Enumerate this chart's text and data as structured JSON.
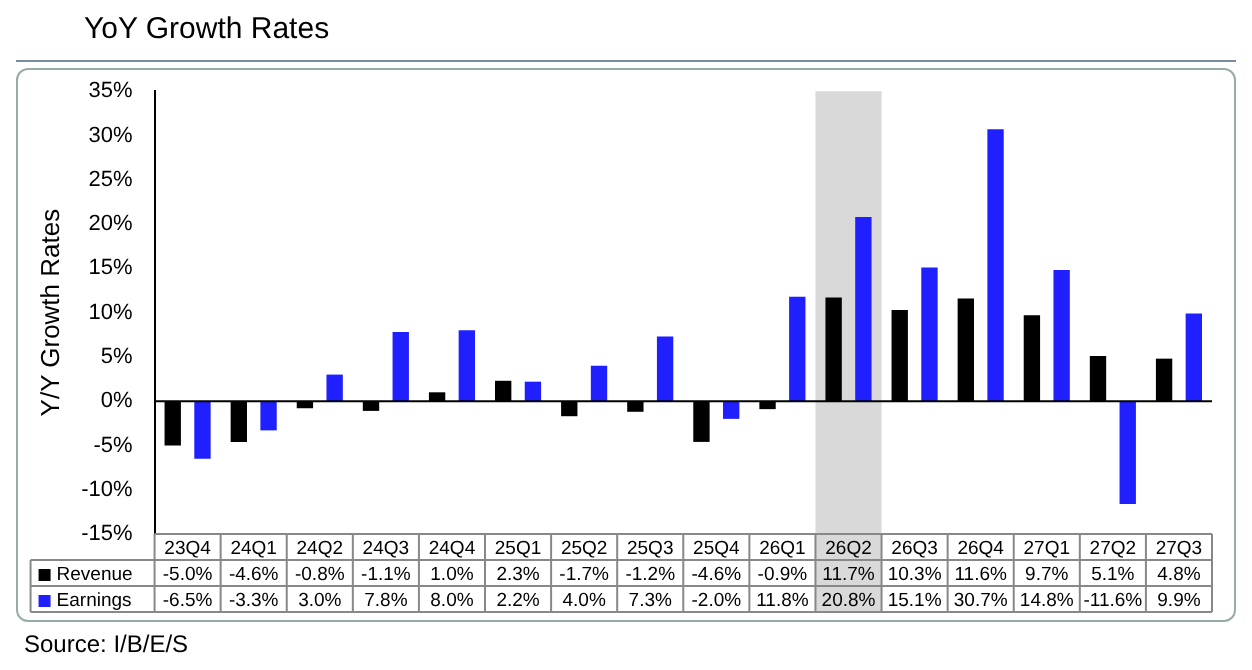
{
  "chart_data": {
    "type": "bar",
    "title": "YoY Growth Rates",
    "ylabel": "Y/Y Growth Rates",
    "categories": [
      "23Q4",
      "24Q1",
      "24Q2",
      "24Q3",
      "24Q4",
      "25Q1",
      "25Q2",
      "25Q3",
      "25Q4",
      "26Q1",
      "26Q2",
      "26Q3",
      "26Q4",
      "27Q1",
      "27Q2",
      "27Q3"
    ],
    "series": [
      {
        "name": "Revenue",
        "color": "#000000",
        "values": [
          -5.0,
          -4.6,
          -0.8,
          -1.1,
          1.0,
          2.3,
          -1.7,
          -1.2,
          -4.6,
          -0.9,
          11.7,
          10.3,
          11.6,
          9.7,
          5.1,
          4.8
        ],
        "value_labels": [
          "-5.0%",
          "-4.6%",
          "-0.8%",
          "-1.1%",
          "1.0%",
          "2.3%",
          "-1.7%",
          "-1.2%",
          "-4.6%",
          "-0.9%",
          "11.7%",
          "10.3%",
          "11.6%",
          "9.7%",
          "5.1%",
          "4.8%"
        ]
      },
      {
        "name": "Earnings",
        "color": "#1f1fff",
        "values": [
          -6.5,
          -3.3,
          3.0,
          7.8,
          8.0,
          2.2,
          4.0,
          7.3,
          -2.0,
          11.8,
          20.8,
          15.1,
          30.7,
          14.8,
          -11.6,
          9.9
        ],
        "value_labels": [
          "-6.5%",
          "-3.3%",
          "3.0%",
          "7.8%",
          "8.0%",
          "2.2%",
          "4.0%",
          "7.3%",
          "-2.0%",
          "11.8%",
          "20.8%",
          "15.1%",
          "30.7%",
          "14.8%",
          "-11.6%",
          "9.9%"
        ]
      }
    ],
    "ylim": [
      -15,
      35
    ],
    "yticks": [
      {
        "value": -15,
        "label": "-15%"
      },
      {
        "value": -10,
        "label": "-10%"
      },
      {
        "value": -5,
        "label": "-5%"
      },
      {
        "value": 0,
        "label": "0%"
      },
      {
        "value": 5,
        "label": "5%"
      },
      {
        "value": 10,
        "label": "10%"
      },
      {
        "value": 15,
        "label": "15%"
      },
      {
        "value": 20,
        "label": "20%"
      },
      {
        "value": 25,
        "label": "25%"
      },
      {
        "value": 30,
        "label": "30%"
      },
      {
        "value": 35,
        "label": "35%"
      }
    ],
    "bands": [
      {
        "axis": "x",
        "from": "26Q2",
        "to": "26Q2",
        "color": "#d9d9d9"
      }
    ],
    "legend": "bottom",
    "annotations": [
      "Source: I/B/E/S"
    ]
  }
}
